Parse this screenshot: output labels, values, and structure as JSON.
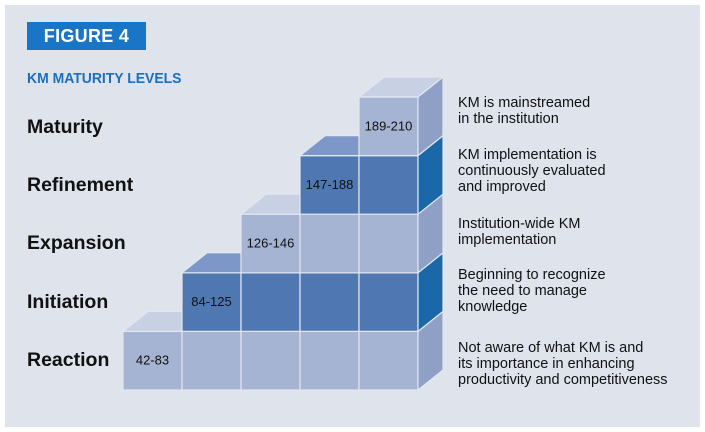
{
  "figure_label": "FIGURE 4",
  "subtitle": "KM MATURITY LEVELS",
  "colors": {
    "badge": "#1976c7",
    "subtitle": "#1a6fbf",
    "panel": "#dfe3ec",
    "light_front": "#a5b4d3",
    "light_top": "#c8d1e4",
    "light_side": "#8fa0c6",
    "dark_front": "#4f78b3",
    "dark_top": "#7d98c8",
    "dark_side": "#1a68a8",
    "edge": "#e2e7f0"
  },
  "levels": [
    {
      "name": "Maturity",
      "range": "189-210",
      "description": [
        "KM is mainstreamed",
        "in the institution"
      ]
    },
    {
      "name": "Refinement",
      "range": "147-188",
      "description": [
        "KM implementation is",
        "continuously evaluated",
        "and improved"
      ]
    },
    {
      "name": "Expansion",
      "range": "126-146",
      "description": [
        "Institution-wide KM",
        "implementation"
      ]
    },
    {
      "name": "Initiation",
      "range": "84-125",
      "description": [
        "Beginning to recognize",
        "the need to manage",
        "knowledge"
      ]
    },
    {
      "name": "Reaction",
      "range": "42-83",
      "description": [
        "Not aware of what KM is and",
        "its importance in enhancing",
        "productivity and competitiveness"
      ]
    }
  ]
}
